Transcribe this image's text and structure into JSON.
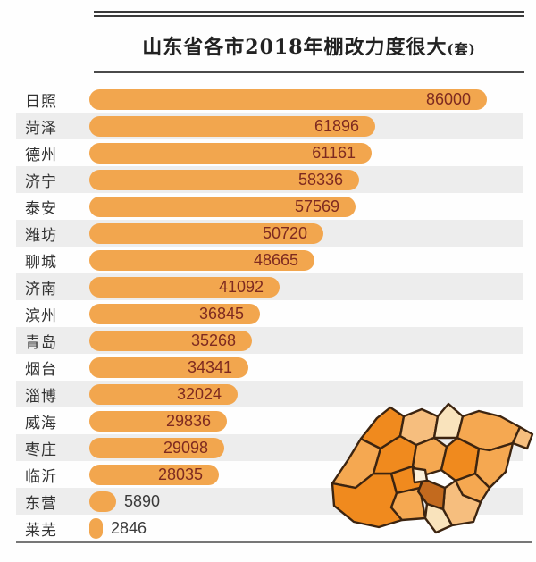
{
  "header": {
    "title": "山东省各市2018年棚改力度很大",
    "unit": "(套)"
  },
  "chart_data": {
    "type": "bar",
    "orientation": "horizontal",
    "title": "山东省各市2018年棚改力度很大(套)",
    "xlabel": "",
    "ylabel": "",
    "xlim": [
      0,
      86000
    ],
    "grid": false,
    "legend": "none",
    "categories": [
      "日照",
      "菏泽",
      "德州",
      "济宁",
      "泰安",
      "潍坊",
      "聊城",
      "济南",
      "滨州",
      "青岛",
      "烟台",
      "淄博",
      "威海",
      "枣庄",
      "临沂",
      "东营",
      "莱芜"
    ],
    "values": [
      86000,
      61896,
      61161,
      58336,
      57569,
      50720,
      48665,
      41092,
      36845,
      35268,
      34341,
      32024,
      29836,
      29098,
      28035,
      5890,
      2846
    ],
    "bar_color": "#F2A64E",
    "value_color_inside": "#7E2A20",
    "value_color_outside": "#3A3A3A",
    "stripe_color": "#EDEDED"
  },
  "map": {
    "name": "shandong-choropleth-map",
    "border_color": "#3C2410",
    "region_colors": [
      "#F5A851",
      "#F08A1E",
      "#F08A1E",
      "#F08A1E",
      "#F6BE7E",
      "#F9E3BC",
      "#F5A851",
      "#F08A1E",
      "#F5A851",
      "#F6BE7E",
      "#F5A851",
      "#F08A1E",
      "#F5A851",
      "#F6BE7E",
      "#F5A851",
      "#C36A1E",
      "#F9E3BC",
      "#FBEFD8"
    ]
  }
}
